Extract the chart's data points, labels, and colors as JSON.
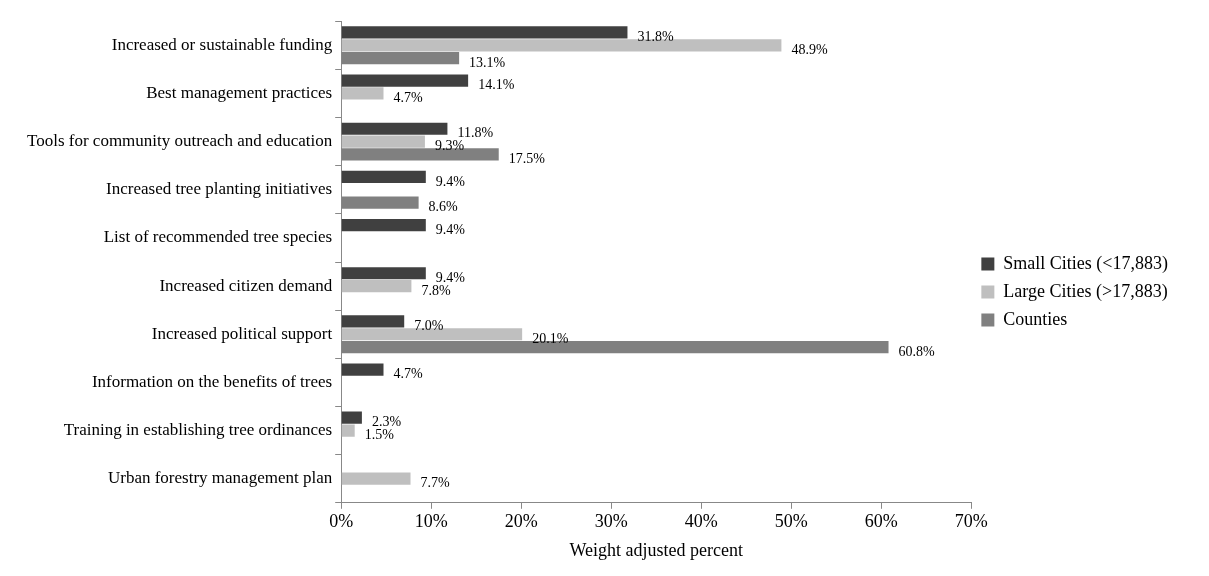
{
  "chart_data": {
    "type": "bar",
    "orientation": "horizontal",
    "xlabel": "Weight adjusted percent",
    "categories": [
      "Increased or sustainable funding",
      "Best management practices",
      "Tools for community outreach and education",
      "Increased tree planting initiatives",
      "List of recommended tree species",
      "Increased citizen demand",
      "Increased political support",
      "Information on the benefits of trees",
      "Training in establishing tree ordinances",
      "Urban forestry management plan"
    ],
    "series": [
      {
        "name": "Small Cities (<17,883)",
        "color": "#404040",
        "values": [
          31.8,
          14.1,
          11.8,
          9.4,
          9.4,
          9.4,
          7.0,
          4.7,
          2.3,
          null
        ],
        "value_labels": [
          "31.8%",
          "14.1%",
          "11.8%",
          "9.4%",
          "9.4%",
          "9.4%",
          "7.0%",
          "4.7%",
          "2.3%",
          null
        ]
      },
      {
        "name": "Large Cities (>17,883)",
        "color": "#bfbfbf",
        "values": [
          48.9,
          4.7,
          9.3,
          null,
          null,
          7.8,
          20.1,
          null,
          1.5,
          7.7
        ],
        "value_labels": [
          "48.9%",
          "4.7%",
          "9.3%",
          null,
          null,
          "7.8%",
          "20.1%",
          null,
          "1.5%",
          "7.7%"
        ]
      },
      {
        "name": "Counties",
        "color": "#808080",
        "values": [
          13.1,
          null,
          17.5,
          8.6,
          null,
          null,
          60.8,
          null,
          null,
          null
        ],
        "value_labels": [
          "13.1%",
          null,
          "17.5%",
          "8.6%",
          null,
          null,
          "60.8%",
          null,
          null,
          null
        ]
      }
    ],
    "xlim": [
      0,
      70
    ],
    "xticks": [
      {
        "value": 0,
        "label": "0%"
      },
      {
        "value": 10,
        "label": "10%"
      },
      {
        "value": 20,
        "label": "20%"
      },
      {
        "value": 30,
        "label": "30%"
      },
      {
        "value": 40,
        "label": "40%"
      },
      {
        "value": 50,
        "label": "50%"
      },
      {
        "value": 60,
        "label": "60%"
      },
      {
        "value": 70,
        "label": "70%"
      }
    ],
    "grid": false,
    "legend": "right"
  }
}
